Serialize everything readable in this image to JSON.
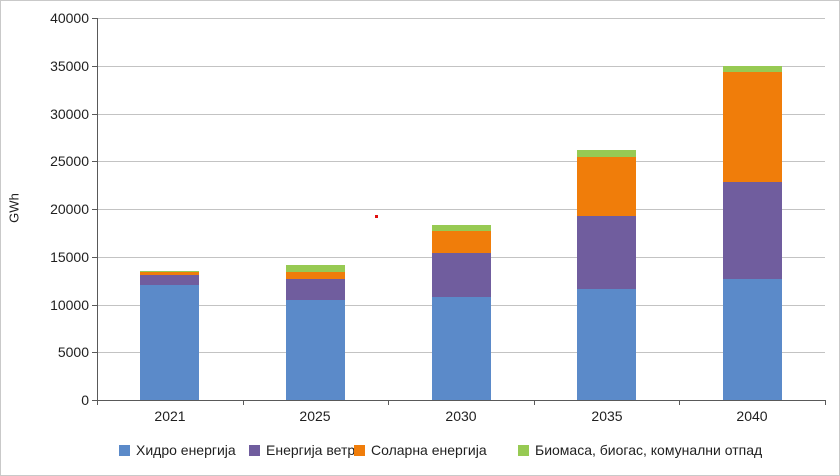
{
  "y_axis_title": "GWh",
  "artifacts": {
    "stray_dot_color": "#e01010"
  },
  "axis_colors": {
    "grid": "#c3c3c3",
    "axis": "#595959",
    "text": "#1f1f1f"
  },
  "chart_data": {
    "type": "bar",
    "stacked": true,
    "title": "",
    "xlabel": "",
    "ylabel": "GWh",
    "categories": [
      "2021",
      "2025",
      "2030",
      "2035",
      "2040"
    ],
    "series": [
      {
        "name": "Хидро енергија",
        "color": "#5b8ac9",
        "values": [
          12000,
          10500,
          10800,
          11600,
          12700
        ]
      },
      {
        "name": "Енергија ветра",
        "color": "#705d9e",
        "values": [
          1100,
          2200,
          4600,
          7700,
          10150
        ]
      },
      {
        "name": "Соларна енергија",
        "color": "#f07d0a",
        "values": [
          300,
          700,
          2300,
          6100,
          11450
        ]
      },
      {
        "name": "Биомаса, биогас, комунални отпад",
        "color": "#97ca53",
        "values": [
          100,
          750,
          650,
          750,
          700
        ]
      }
    ],
    "totals": [
      13500,
      14150,
      18350,
      26150,
      35000
    ],
    "ylim": [
      0,
      40000
    ],
    "ytick_step": 5000,
    "yticks": [
      "0",
      "5000",
      "10000",
      "15000",
      "20000",
      "25000",
      "30000",
      "35000",
      "40000"
    ],
    "grid": true,
    "legend_position": "bottom"
  },
  "legend_x_positions": [
    118,
    248,
    353,
    517
  ]
}
